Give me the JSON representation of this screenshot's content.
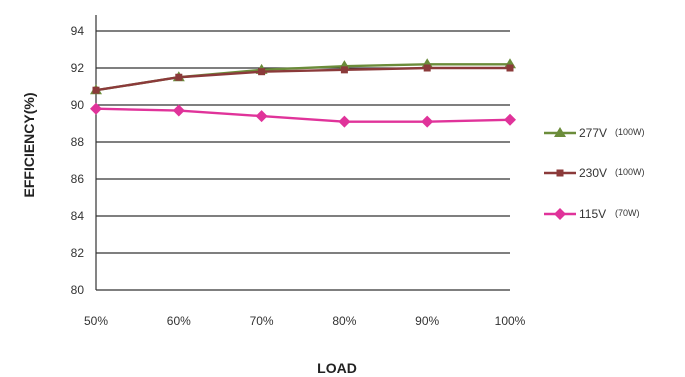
{
  "chart_data": {
    "type": "line",
    "title": "",
    "xlabel": "LOAD",
    "ylabel": "EFFICIENCY(%)",
    "categories": [
      "50%",
      "60%",
      "70%",
      "80%",
      "90%",
      "100%"
    ],
    "ylim": [
      80,
      94
    ],
    "yticks": [
      80,
      82,
      84,
      86,
      88,
      90,
      92,
      94
    ],
    "grid": true,
    "legend_position": "right",
    "series": [
      {
        "name": "277V",
        "name_note": "(100W)",
        "color": "#6b8c3a",
        "marker": "triangle",
        "values": [
          90.8,
          91.5,
          91.9,
          92.1,
          92.2,
          92.2
        ]
      },
      {
        "name": "230V",
        "name_note": "(100W)",
        "color": "#8b3a3a",
        "marker": "square",
        "values": [
          90.8,
          91.5,
          91.8,
          91.9,
          92.0,
          92.0
        ]
      },
      {
        "name": "115V",
        "name_note": "(70W)",
        "color": "#e0339a",
        "marker": "diamond",
        "values": [
          89.8,
          89.7,
          89.4,
          89.1,
          89.1,
          89.2
        ]
      }
    ]
  }
}
